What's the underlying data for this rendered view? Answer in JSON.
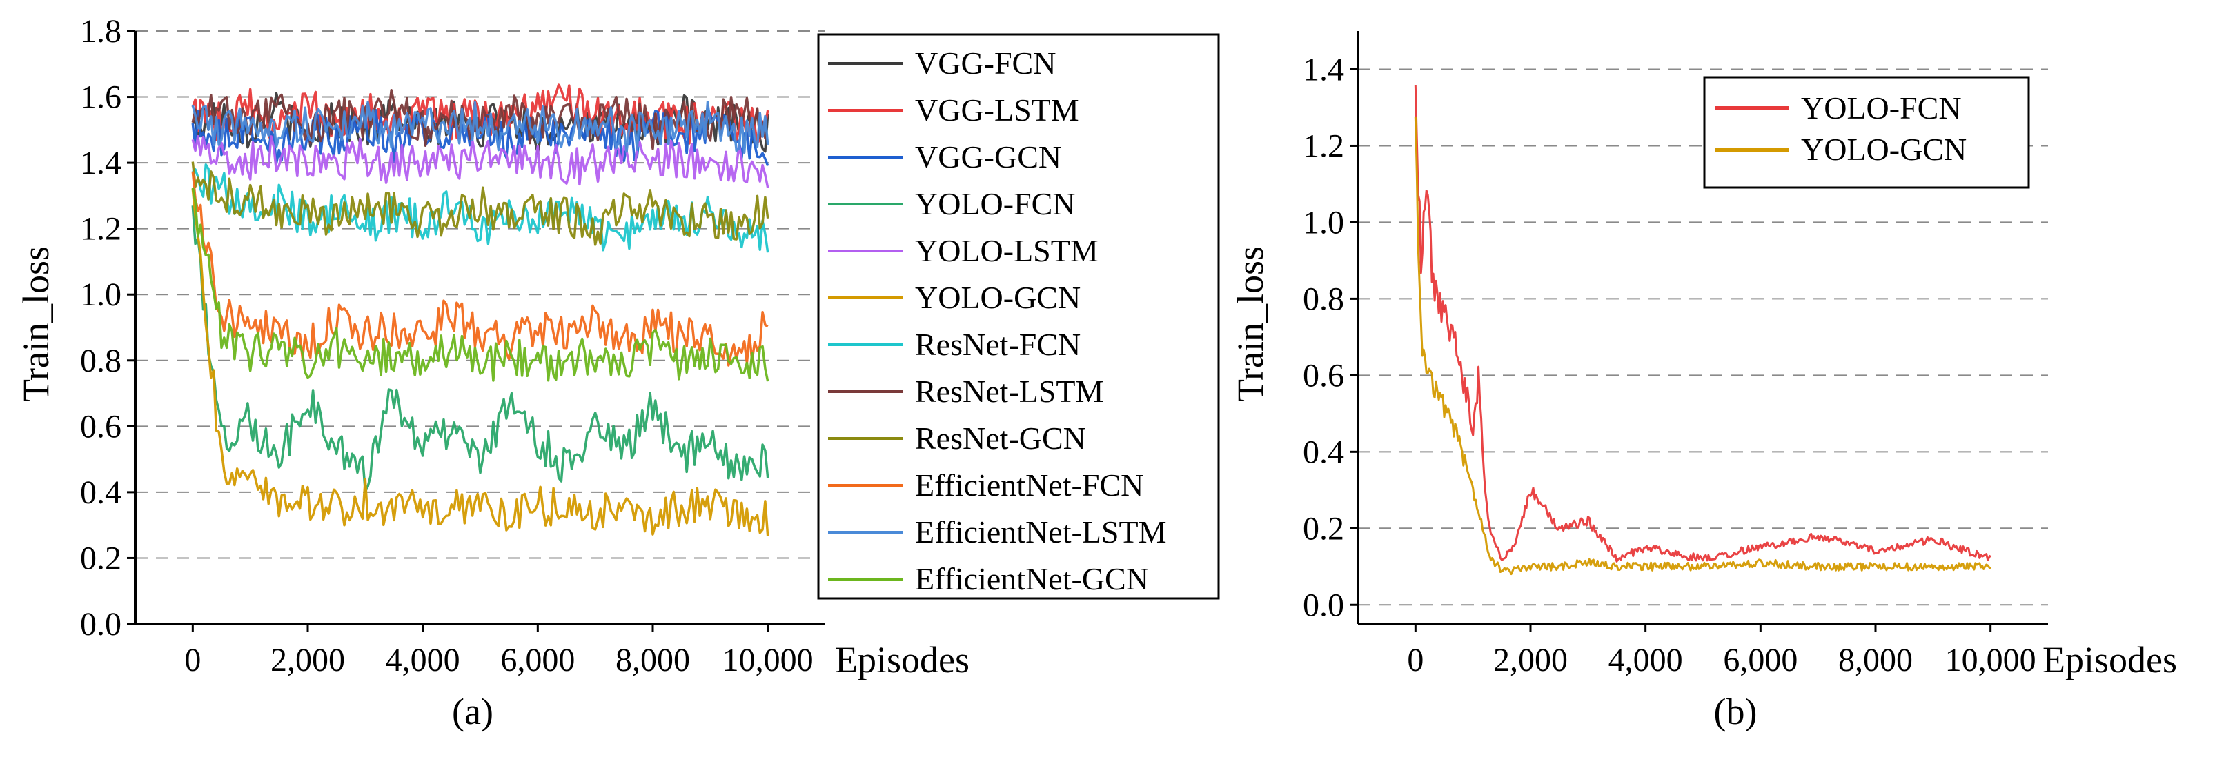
{
  "figure": {
    "panels": [
      "(a)",
      "(b)"
    ]
  },
  "chart_data": [
    {
      "type": "line",
      "caption": "(a)",
      "xlabel": "Episodes",
      "ylabel": "Train_loss",
      "xlim": [
        -1000,
        11000
      ],
      "ylim": [
        0.0,
        1.8
      ],
      "xticks": [
        0,
        2000,
        4000,
        6000,
        8000,
        10000
      ],
      "xtick_labels": [
        "0",
        "2,000",
        "4,000",
        "6,000",
        "8,000",
        "10,000"
      ],
      "yticks": [
        0.0,
        0.2,
        0.4,
        0.6,
        0.8,
        1.0,
        1.2,
        1.4,
        1.6,
        1.8
      ],
      "ytick_labels": [
        "0.0",
        "0.2",
        "0.4",
        "0.6",
        "0.8",
        "1.0",
        "1.2",
        "1.4",
        "1.6",
        "1.8"
      ],
      "grid": "horizontal-dashed",
      "legend_position": "outside-right",
      "x": [
        0,
        500,
        1000,
        1500,
        2000,
        2500,
        3000,
        3500,
        4000,
        4500,
        5000,
        5500,
        6000,
        6500,
        7000,
        7500,
        8000,
        8500,
        9000,
        9500,
        10000
      ],
      "series": [
        {
          "name": "VGG-FCN",
          "color": "#3a3a3a",
          "values": [
            1.5,
            1.55,
            1.5,
            1.56,
            1.48,
            1.54,
            1.5,
            1.55,
            1.49,
            1.53,
            1.5,
            1.55,
            1.48,
            1.54,
            1.5,
            1.52,
            1.49,
            1.55,
            1.5,
            1.53,
            1.49
          ]
        },
        {
          "name": "VGG-LSTM",
          "color": "#e8393a",
          "values": [
            1.55,
            1.52,
            1.57,
            1.5,
            1.58,
            1.52,
            1.56,
            1.5,
            1.57,
            1.53,
            1.55,
            1.52,
            1.58,
            1.6,
            1.54,
            1.52,
            1.56,
            1.5,
            1.55,
            1.52,
            1.5
          ]
        },
        {
          "name": "VGG-GCN",
          "color": "#1e5fd0",
          "values": [
            1.5,
            1.48,
            1.52,
            1.45,
            1.5,
            1.47,
            1.53,
            1.46,
            1.5,
            1.48,
            1.52,
            1.46,
            1.5,
            1.47,
            1.52,
            1.45,
            1.5,
            1.48,
            1.51,
            1.46,
            1.45
          ]
        },
        {
          "name": "YOLO-FCN",
          "color": "#2aa86a",
          "values": [
            1.25,
            0.55,
            0.62,
            0.5,
            0.68,
            0.55,
            0.45,
            0.7,
            0.52,
            0.6,
            0.5,
            0.65,
            0.55,
            0.48,
            0.6,
            0.52,
            0.66,
            0.5,
            0.58,
            0.45,
            0.5
          ]
        },
        {
          "name": "YOLO-LSTM",
          "color": "#b35ff0",
          "values": [
            1.45,
            1.42,
            1.4,
            1.43,
            1.41,
            1.4,
            1.42,
            1.39,
            1.41,
            1.4,
            1.42,
            1.4,
            1.41,
            1.39,
            1.4,
            1.42,
            1.4,
            1.41,
            1.39,
            1.4,
            1.38
          ]
        },
        {
          "name": "YOLO-GCN",
          "color": "#d49a00",
          "values": [
            1.3,
            0.5,
            0.42,
            0.38,
            0.36,
            0.35,
            0.38,
            0.33,
            0.36,
            0.35,
            0.38,
            0.34,
            0.36,
            0.35,
            0.33,
            0.36,
            0.32,
            0.35,
            0.36,
            0.33,
            0.32
          ]
        },
        {
          "name": "ResNet-FCN",
          "color": "#1ec6cc",
          "values": [
            1.35,
            1.32,
            1.25,
            1.28,
            1.22,
            1.26,
            1.2,
            1.25,
            1.22,
            1.27,
            1.2,
            1.24,
            1.22,
            1.25,
            1.2,
            1.18,
            1.25,
            1.22,
            1.24,
            1.2,
            1.18
          ]
        },
        {
          "name": "ResNet-LSTM",
          "color": "#7a3a3a",
          "values": [
            1.5,
            1.58,
            1.52,
            1.56,
            1.5,
            1.55,
            1.52,
            1.57,
            1.5,
            1.54,
            1.52,
            1.56,
            1.5,
            1.55,
            1.52,
            1.56,
            1.5,
            1.54,
            1.52,
            1.55,
            1.52
          ]
        },
        {
          "name": "ResNet-GCN",
          "color": "#8b8a10",
          "values": [
            1.38,
            1.3,
            1.28,
            1.25,
            1.27,
            1.22,
            1.25,
            1.28,
            1.22,
            1.25,
            1.27,
            1.22,
            1.26,
            1.24,
            1.2,
            1.25,
            1.27,
            1.22,
            1.24,
            1.2,
            1.28
          ]
        },
        {
          "name": "EfficientNet-FCN",
          "color": "#f26a1b",
          "values": [
            1.35,
            0.95,
            0.88,
            0.9,
            0.85,
            0.92,
            0.88,
            0.9,
            0.86,
            0.95,
            0.88,
            0.85,
            0.9,
            0.88,
            0.92,
            0.85,
            0.9,
            0.88,
            0.85,
            0.78,
            0.95
          ]
        },
        {
          "name": "EfficientNet-LSTM",
          "color": "#4a8ad8",
          "values": [
            1.55,
            1.5,
            1.53,
            1.48,
            1.52,
            1.5,
            1.54,
            1.49,
            1.52,
            1.5,
            1.53,
            1.48,
            1.52,
            1.5,
            1.54,
            1.49,
            1.51,
            1.5,
            1.53,
            1.48,
            1.5
          ]
        },
        {
          "name": "EfficientNet-GCN",
          "color": "#6cb61e",
          "values": [
            1.3,
            0.88,
            0.82,
            0.85,
            0.8,
            0.84,
            0.78,
            0.82,
            0.8,
            0.84,
            0.78,
            0.82,
            0.8,
            0.79,
            0.82,
            0.8,
            0.84,
            0.78,
            0.82,
            0.8,
            0.78
          ]
        }
      ]
    },
    {
      "type": "line",
      "caption": "(b)",
      "xlabel": "Episodes",
      "ylabel": "Train_loss",
      "xlim": [
        -1000,
        11000
      ],
      "ylim": [
        -0.05,
        1.5
      ],
      "xticks": [
        0,
        2000,
        4000,
        6000,
        8000,
        10000
      ],
      "xtick_labels": [
        "0",
        "2,000",
        "4,000",
        "6,000",
        "8,000",
        "10,000"
      ],
      "yticks": [
        0.0,
        0.2,
        0.4,
        0.6,
        0.8,
        1.0,
        1.2,
        1.4
      ],
      "ytick_labels": [
        "0.0",
        "0.2",
        "0.4",
        "0.6",
        "0.8",
        "1.0",
        "1.2",
        "1.4"
      ],
      "grid": "horizontal-dashed",
      "legend_position": "top-right",
      "x": [
        0,
        100,
        200,
        300,
        400,
        500,
        600,
        700,
        800,
        900,
        1000,
        1100,
        1200,
        1300,
        1500,
        1700,
        2000,
        2500,
        3000,
        3500,
        4000,
        5000,
        6000,
        7000,
        8000,
        9000,
        10000
      ],
      "series": [
        {
          "name": "YOLO-FCN",
          "color": "#e8393a",
          "values": [
            1.3,
            0.9,
            1.09,
            0.85,
            0.8,
            0.75,
            0.72,
            0.68,
            0.6,
            0.55,
            0.45,
            0.6,
            0.3,
            0.2,
            0.12,
            0.15,
            0.3,
            0.2,
            0.22,
            0.12,
            0.15,
            0.12,
            0.15,
            0.18,
            0.14,
            0.17,
            0.12
          ]
        },
        {
          "name": "YOLO-GCN",
          "color": "#d49a00",
          "values": [
            1.22,
            0.7,
            0.62,
            0.58,
            0.55,
            0.52,
            0.48,
            0.45,
            0.4,
            0.35,
            0.3,
            0.25,
            0.18,
            0.12,
            0.09,
            0.09,
            0.1,
            0.1,
            0.11,
            0.1,
            0.1,
            0.1,
            0.11,
            0.1,
            0.1,
            0.1,
            0.1
          ]
        }
      ]
    }
  ]
}
